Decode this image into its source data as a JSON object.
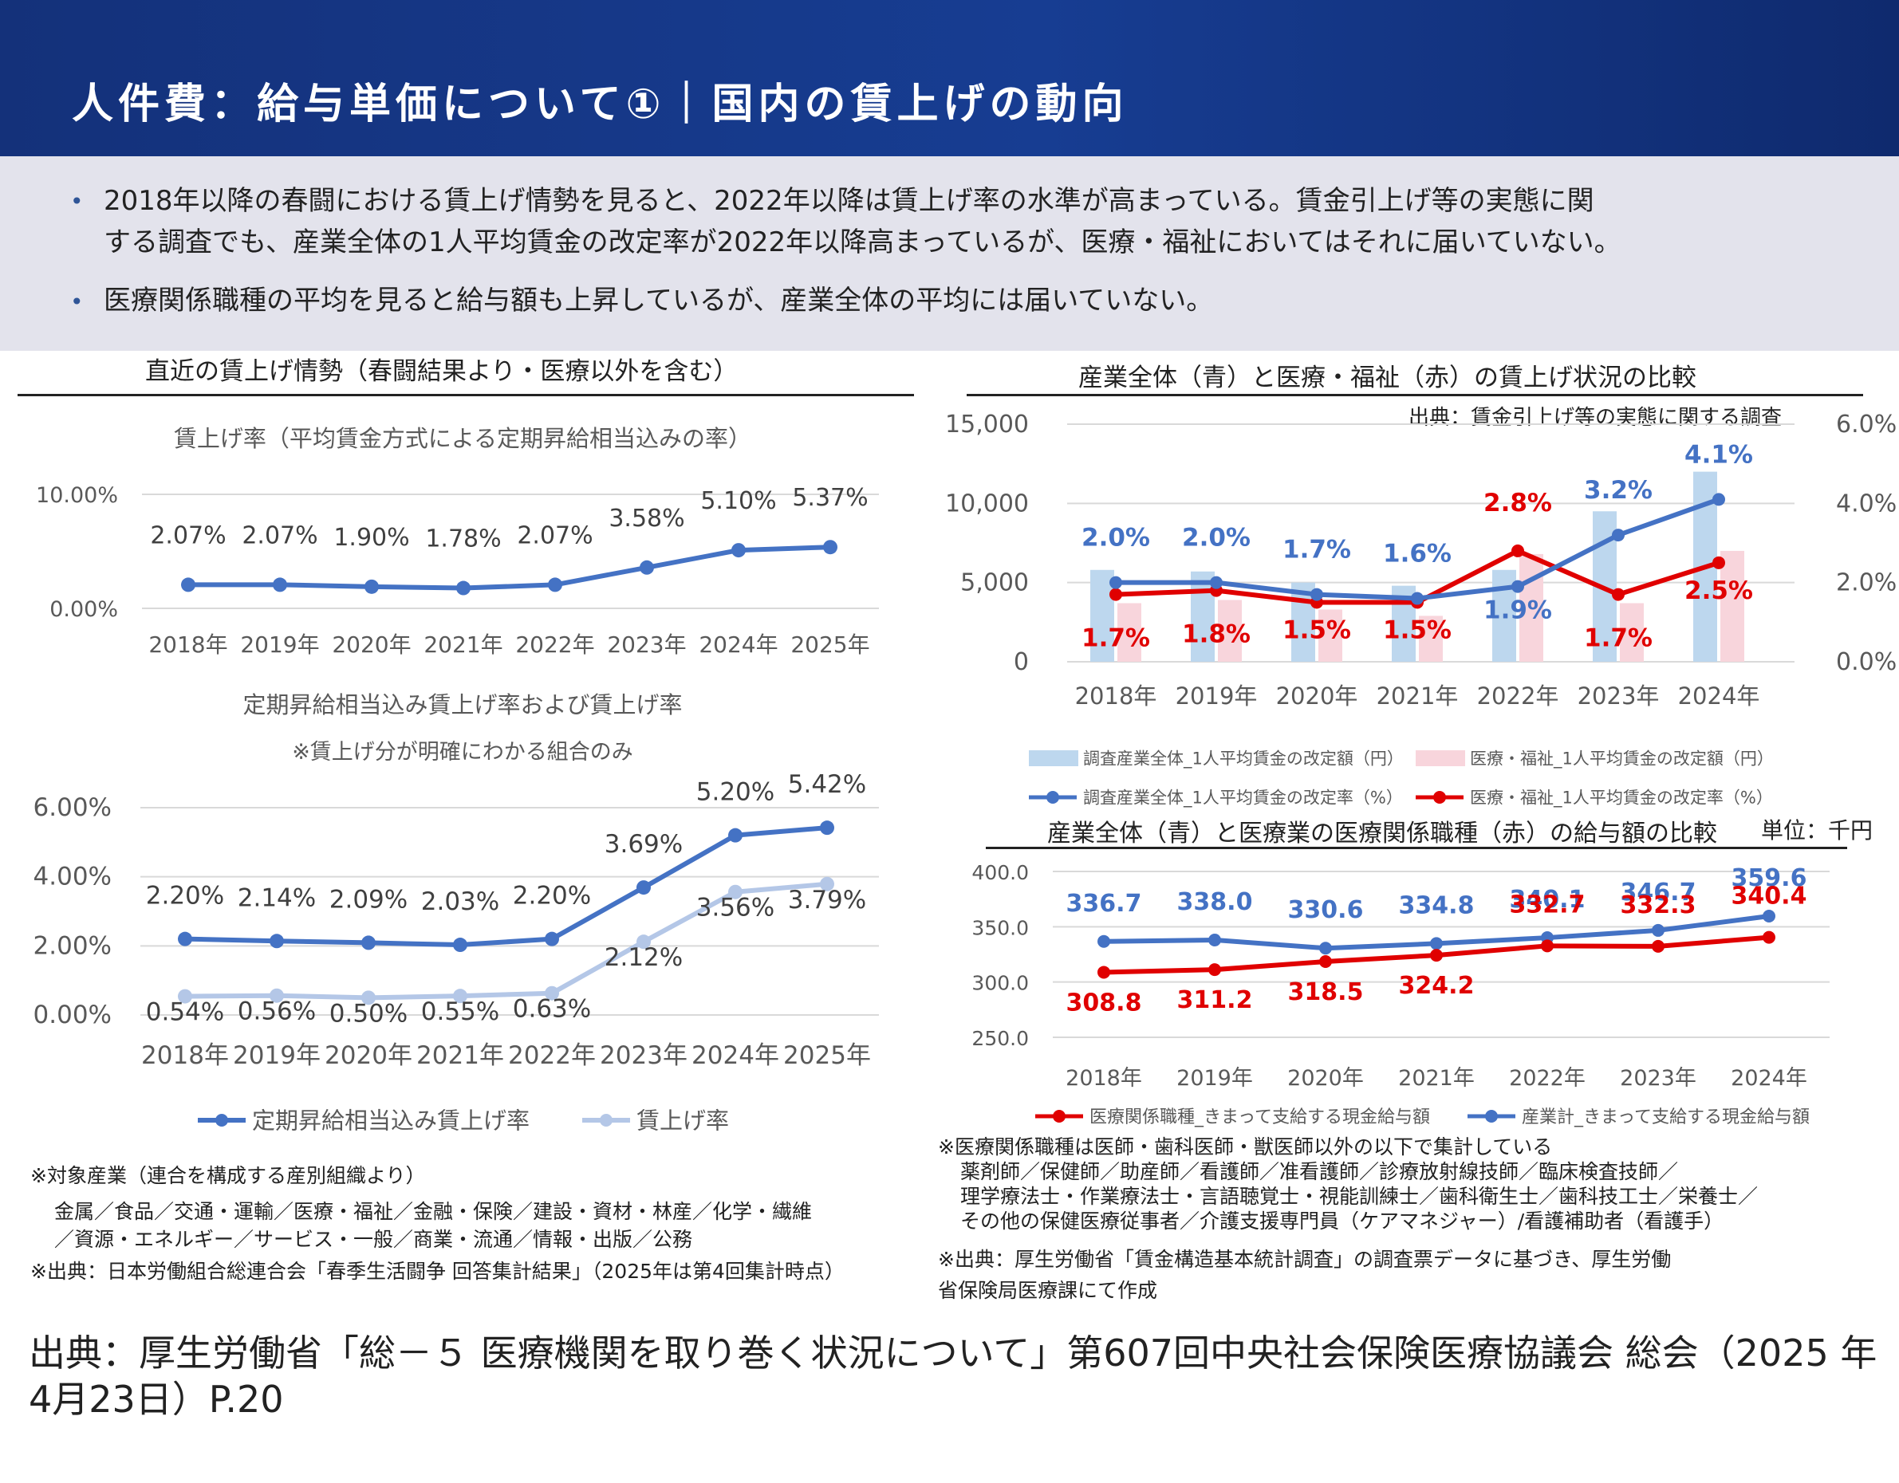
{
  "header": {
    "title": "人件費：給与単価について①｜国内の賃上げの動向"
  },
  "summary": {
    "bullet1_line1": "2018年以降の春闘における賃上げ情勢を見ると、2022年以降は賃上げ率の水準が高まっている。賃金引上げ等の実態に関",
    "bullet1_line2": "する調査でも、産業全体の1人平均賃金の改定率が2022年以降高まっているが、医療・福祉においてはそれに届いていない。",
    "bullet2": "医療関係職種の平均を見ると給与額も上昇しているが、産業全体の平均には届いていない。",
    "bullet_symbol": "•"
  },
  "left_section": {
    "title": "直近の賃上げ情勢（春闘結果より・医療以外を含む）",
    "notes": [
      "※対象産業（連合を構成する産別組織より）",
      "金属／食品／交通・運輸／医療・福祉／金融・保険／建設・資材・林産／化学・繊維",
      "／資源・エネルギー／サービス・一般／商業・流通／情報・出版／公務",
      "※出典：日本労働組合総連合会「春季生活闘争 回答集計結果」（2025年は第4回集計時点）"
    ]
  },
  "right_section": {
    "title": "産業全体（青）と医療・福祉（赤）の賃上げ状況の比較",
    "notes": [
      "※医療関係職種は医師・歯科医師・獣医師以外の以下で集計している",
      "薬剤師／保健師／助産師／看護師／准看護師／診療放射線技師／臨床検査技師／",
      "理学療法士・作業療法士・言語聴覚士・視能訓練士／歯科衛生士／歯科技工士／栄養士／",
      "その他の保健医療従事者／介護支援専門員（ケアマネジャー）/看護補助者（看護手）",
      "※出典：厚生労働省「賃金構造基本統計調査」の調査票データに基づき、厚生労働",
      "省保険局医療課にて作成"
    ]
  },
  "source": {
    "text": "出典：厚生労働省「総－５ 医療機関を取り巻く状況について」第607回中央社会保険医療協議会 総会（2025 年4月23日）P.20"
  },
  "chart_data": [
    {
      "id": "chart1",
      "type": "line",
      "title": "賃上げ率（平均賃金方式による定期昇給相当込みの率）",
      "categories": [
        "2018年",
        "2019年",
        "2020年",
        "2021年",
        "2022年",
        "2023年",
        "2024年",
        "2025年"
      ],
      "y_ticks": [
        "10.00%",
        "0.00%"
      ],
      "ylim": [
        0,
        10
      ],
      "grid": true,
      "legend": "none",
      "series": [
        {
          "values": [
            2.07,
            2.07,
            1.9,
            1.78,
            2.07,
            3.58,
            5.1,
            5.37
          ],
          "labels": [
            "2.07%",
            "2.07%",
            "1.90%",
            "1.78%",
            "2.07%",
            "3.58%",
            "5.10%",
            "5.37%"
          ],
          "color": "#4472c4"
        }
      ]
    },
    {
      "id": "chart2",
      "type": "line",
      "title": "定期昇給相当込み賃上げ率および賃上げ率",
      "subtitle": "※賃上げ分が明確にわかる組合のみ",
      "categories": [
        "2018年",
        "2019年",
        "2020年",
        "2021年",
        "2022年",
        "2023年",
        "2024年",
        "2025年"
      ],
      "y_ticks": [
        "6.00%",
        "4.00%",
        "2.00%",
        "0.00%"
      ],
      "ylim": [
        0,
        6
      ],
      "grid": true,
      "legend": "bottom",
      "series": [
        {
          "name": "定期昇給相当込み賃上げ率",
          "values": [
            2.2,
            2.14,
            2.09,
            2.03,
            2.2,
            3.69,
            5.2,
            5.42
          ],
          "labels": [
            "2.20%",
            "2.14%",
            "2.09%",
            "2.03%",
            "2.20%",
            "3.69%",
            "5.20%",
            "5.42%"
          ],
          "color": "#4472c4"
        },
        {
          "name": "賃上げ率",
          "values": [
            0.54,
            0.56,
            0.5,
            0.55,
            0.63,
            2.12,
            3.56,
            3.79
          ],
          "labels": [
            "0.54%",
            "0.56%",
            "0.50%",
            "0.55%",
            "0.63%",
            "2.12%",
            "3.56%",
            "3.79%"
          ],
          "color": "#b4c7e7"
        }
      ]
    },
    {
      "id": "chart3",
      "type": "bar+line",
      "source_note": "出典：賃金引上げ等の実態に関する調査",
      "categories": [
        "2018年",
        "2019年",
        "2020年",
        "2021年",
        "2022年",
        "2023年",
        "2024年"
      ],
      "y_left_ticks": [
        "15,000",
        "10,000",
        "5,000",
        "0"
      ],
      "y_right_ticks": [
        "6.0%",
        "4.0%",
        "2.0%",
        "0.0%"
      ],
      "ylim_left": [
        0,
        15000
      ],
      "ylim_right": [
        0,
        6
      ],
      "grid": true,
      "legend": "bottom",
      "bars": [
        {
          "name": "調査産業全体_1人平均賃金の改定額（円）",
          "values": [
            5800,
            5700,
            5000,
            4800,
            5800,
            9500,
            12000
          ],
          "color": "#bdd7ee"
        },
        {
          "name": "医療・福祉_1人平均賃金の改定額（円）",
          "values": [
            3700,
            3900,
            3300,
            2900,
            6800,
            3700,
            7000
          ],
          "color": "#f8d5dc"
        }
      ],
      "lines": [
        {
          "name": "調査産業全体_1人平均賃金の改定率（%）",
          "values": [
            2.0,
            2.0,
            1.7,
            1.6,
            1.9,
            3.2,
            4.1
          ],
          "labels": [
            "2.0%",
            "2.0%",
            "1.7%",
            "1.6%",
            "1.9%",
            "3.2%",
            "4.1%"
          ],
          "color": "#4472c4"
        },
        {
          "name": "医療・福祉_1人平均賃金の改定率（%）",
          "values": [
            1.7,
            1.8,
            1.5,
            1.5,
            2.8,
            1.7,
            2.5
          ],
          "labels": [
            "1.7%",
            "1.8%",
            "1.5%",
            "1.5%",
            "2.8%",
            "1.7%",
            "2.5%"
          ],
          "color": "#e00000"
        }
      ]
    },
    {
      "id": "chart4",
      "type": "line",
      "title": "産業全体（青）と医療業の医療関係職種（赤）の給与額の比較",
      "unit_label": "単位：千円",
      "categories": [
        "2018年",
        "2019年",
        "2020年",
        "2021年",
        "2022年",
        "2023年",
        "2024年"
      ],
      "y_ticks": [
        "400.0",
        "350.0",
        "300.0",
        "250.0"
      ],
      "ylim": [
        250,
        400
      ],
      "grid": true,
      "legend": "bottom",
      "series": [
        {
          "name": "産業計_きまって支給する現金給与額",
          "values": [
            336.7,
            338.0,
            330.6,
            334.8,
            340.1,
            346.7,
            359.6
          ],
          "labels": [
            "336.7",
            "338.0",
            "330.6",
            "334.8",
            "340.1",
            "346.7",
            "359.6"
          ],
          "color": "#4472c4"
        },
        {
          "name": "医療関係職種_きまって支給する現金給与額",
          "values": [
            308.8,
            311.2,
            318.5,
            324.2,
            332.7,
            332.3,
            340.4
          ],
          "labels": [
            "308.8",
            "311.2",
            "318.5",
            "324.2",
            "332.7",
            "332.3",
            "340.4"
          ],
          "color": "#e00000"
        }
      ]
    }
  ]
}
